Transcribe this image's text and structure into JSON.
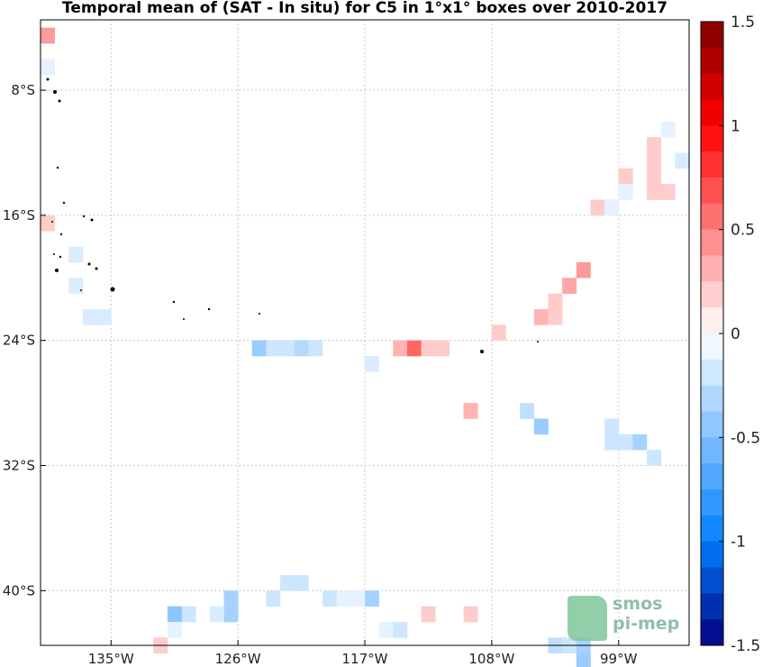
{
  "title": "Temporal mean of (SAT - In situ) for C5 in 1°x1° boxes over 2010-2017",
  "lat_labels": [
    "8°S",
    "16°S",
    "24°S",
    "32°S",
    "40°S"
  ],
  "lon_labels": [
    "135°W",
    "126°W",
    "117°W",
    "108°W",
    "99°W"
  ],
  "colorbar": {
    "ticks": [
      "1.5",
      "1",
      "0.5",
      "0",
      "-0.5",
      "-1",
      "-1.5"
    ],
    "min": -1.5,
    "max": 1.5,
    "levels": 24
  },
  "logo": {
    "line1": "smos",
    "line2": "pi-mep"
  },
  "chart_data": {
    "type": "heatmap",
    "title": "Temporal mean of (SAT - In situ) for C5 in 1°x1° boxes over 2010-2017",
    "x_unit": "longitude (°W)",
    "y_unit": "latitude (°S)",
    "xlim": [
      140,
      94
    ],
    "ylim": [
      3.5,
      43.5
    ],
    "cell_size_deg": 1,
    "colorscale": "blue-white-red",
    "vmin": -1.5,
    "vmax": 1.5,
    "cells": [
      {
        "lon": 139.5,
        "lat": 4.5,
        "v": 0.4
      },
      {
        "lon": 139.5,
        "lat": 6.5,
        "v": -0.1
      },
      {
        "lon": 139.5,
        "lat": 16.5,
        "v": 0.2
      },
      {
        "lon": 137.5,
        "lat": 18.5,
        "v": -0.15
      },
      {
        "lon": 137.5,
        "lat": 20.5,
        "v": -0.15
      },
      {
        "lon": 136.5,
        "lat": 22.5,
        "v": -0.15
      },
      {
        "lon": 135.5,
        "lat": 22.5,
        "v": -0.15
      },
      {
        "lon": 135.5,
        "lat": 22.5,
        "v": -0.15
      },
      {
        "lon": 124.5,
        "lat": 24.5,
        "v": -0.4
      },
      {
        "lon": 123.5,
        "lat": 24.5,
        "v": -0.2
      },
      {
        "lon": 122.5,
        "lat": 24.5,
        "v": -0.2
      },
      {
        "lon": 121.5,
        "lat": 24.5,
        "v": -0.3
      },
      {
        "lon": 120.5,
        "lat": 24.5,
        "v": -0.2
      },
      {
        "lon": 116.5,
        "lat": 25.5,
        "v": -0.15
      },
      {
        "lon": 114.5,
        "lat": 24.5,
        "v": 0.3
      },
      {
        "lon": 113.5,
        "lat": 24.5,
        "v": 0.6
      },
      {
        "lon": 112.5,
        "lat": 24.5,
        "v": 0.2
      },
      {
        "lon": 111.5,
        "lat": 24.5,
        "v": 0.2
      },
      {
        "lon": 109.5,
        "lat": 28.5,
        "v": 0.3
      },
      {
        "lon": 107.5,
        "lat": 23.5,
        "v": 0.2
      },
      {
        "lon": 105.5,
        "lat": 28.5,
        "v": -0.25
      },
      {
        "lon": 104.5,
        "lat": 22.5,
        "v": 0.3
      },
      {
        "lon": 103.5,
        "lat": 22.5,
        "v": 0.2
      },
      {
        "lon": 103.5,
        "lat": 21.5,
        "v": 0.2
      },
      {
        "lon": 102.5,
        "lat": 20.5,
        "v": 0.35
      },
      {
        "lon": 101.5,
        "lat": 19.5,
        "v": 0.4
      },
      {
        "lon": 104.5,
        "lat": 29.5,
        "v": -0.4
      },
      {
        "lon": 100.5,
        "lat": 15.5,
        "v": 0.2
      },
      {
        "lon": 99.5,
        "lat": 15.5,
        "v": -0.1
      },
      {
        "lon": 99.5,
        "lat": 29.5,
        "v": -0.2
      },
      {
        "lon": 99.5,
        "lat": 30.5,
        "v": -0.2
      },
      {
        "lon": 98.5,
        "lat": 30.5,
        "v": -0.2
      },
      {
        "lon": 97.5,
        "lat": 30.5,
        "v": -0.35
      },
      {
        "lon": 96.5,
        "lat": 31.5,
        "v": -0.2
      },
      {
        "lon": 98.5,
        "lat": 13.5,
        "v": 0.2
      },
      {
        "lon": 98.5,
        "lat": 14.5,
        "v": -0.1
      },
      {
        "lon": 96.5,
        "lat": 11.5,
        "v": 0.2
      },
      {
        "lon": 96.5,
        "lat": 12.5,
        "v": 0.2
      },
      {
        "lon": 96.5,
        "lat": 13.5,
        "v": 0.2
      },
      {
        "lon": 96.5,
        "lat": 14.5,
        "v": 0.2
      },
      {
        "lon": 95.5,
        "lat": 14.5,
        "v": 0.2
      },
      {
        "lon": 95.5,
        "lat": 10.5,
        "v": -0.1
      },
      {
        "lon": 94.5,
        "lat": 12.5,
        "v": -0.15
      },
      {
        "lon": 121.5,
        "lat": 39.5,
        "v": -0.2
      },
      {
        "lon": 122.5,
        "lat": 39.5,
        "v": -0.2
      },
      {
        "lon": 123.5,
        "lat": 40.5,
        "v": -0.2
      },
      {
        "lon": 126.5,
        "lat": 40.5,
        "v": -0.35
      },
      {
        "lon": 126.5,
        "lat": 41.5,
        "v": -0.35
      },
      {
        "lon": 127.5,
        "lat": 41.5,
        "v": -0.15
      },
      {
        "lon": 129.5,
        "lat": 41.5,
        "v": -0.2
      },
      {
        "lon": 130.5,
        "lat": 41.5,
        "v": -0.45
      },
      {
        "lon": 130.5,
        "lat": 42.5,
        "v": -0.1
      },
      {
        "lon": 131.5,
        "lat": 43.5,
        "v": 0.2
      },
      {
        "lon": 119.5,
        "lat": 40.5,
        "v": -0.2
      },
      {
        "lon": 118.5,
        "lat": 40.5,
        "v": -0.1
      },
      {
        "lon": 117.5,
        "lat": 40.5,
        "v": -0.1
      },
      {
        "lon": 116.5,
        "lat": 40.5,
        "v": -0.35
      },
      {
        "lon": 115.5,
        "lat": 42.5,
        "v": -0.1
      },
      {
        "lon": 114.5,
        "lat": 42.5,
        "v": -0.2
      },
      {
        "lon": 112.5,
        "lat": 41.5,
        "v": 0.2
      },
      {
        "lon": 109.5,
        "lat": 41.5,
        "v": 0.2
      },
      {
        "lon": 103.5,
        "lat": 43.5,
        "v": -0.25
      },
      {
        "lon": 102.5,
        "lat": 43.5,
        "v": -0.2
      },
      {
        "lon": 101.5,
        "lat": 43.5,
        "v": -0.35
      },
      {
        "lon": 101.5,
        "lat": 44.5,
        "v": -0.4
      }
    ]
  }
}
